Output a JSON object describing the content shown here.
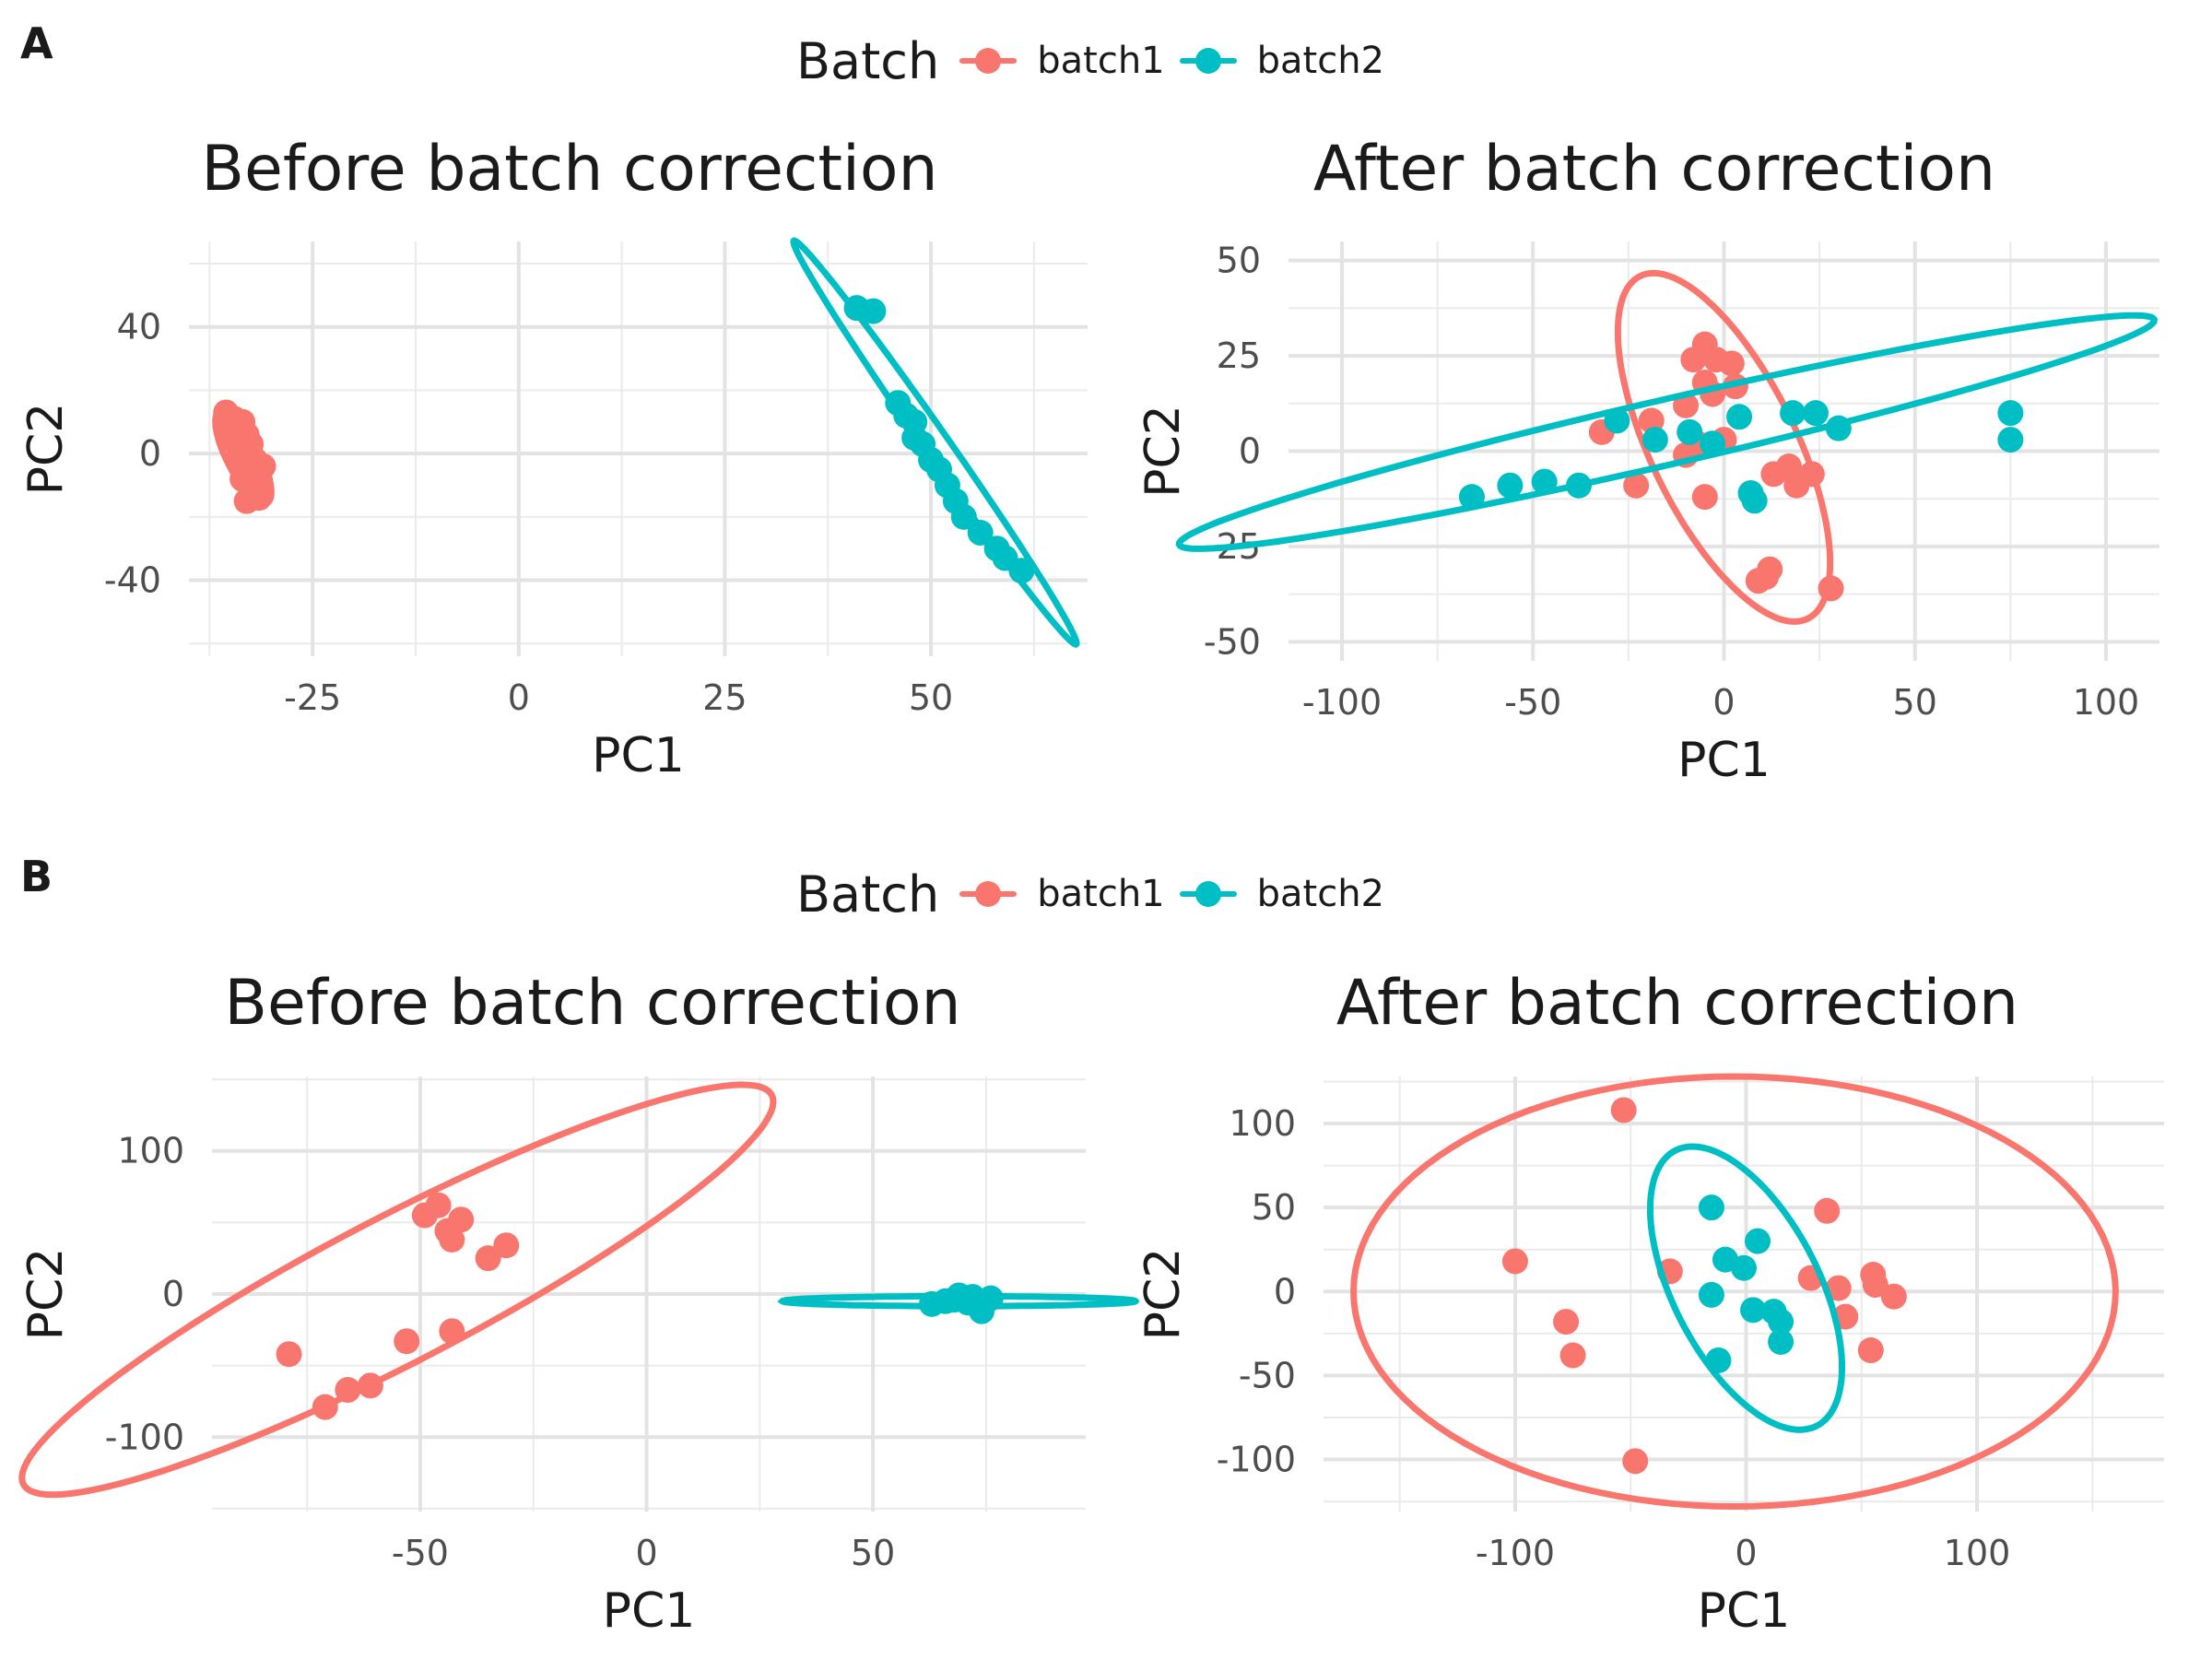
{
  "figure": {
    "panel_a_label": "A",
    "panel_b_label": "B",
    "legend_a": {
      "title": "Batch",
      "items": [
        {
          "label": "batch1",
          "color": "#F8766D"
        },
        {
          "label": "batch2",
          "color": "#00BFC4"
        }
      ]
    },
    "legend_b": {
      "title": "Batch",
      "items": [
        {
          "label": "batch1",
          "color": "#F8766D"
        },
        {
          "label": "batch2",
          "color": "#00BFC4"
        }
      ]
    }
  },
  "chart_data": [
    {
      "type": "scatter",
      "panel": "A",
      "title": "Before batch correction",
      "xlabel": "PC1",
      "ylabel": "PC2",
      "xlim": [
        -40,
        69
      ],
      "ylim": [
        -64,
        67
      ],
      "xticks": [
        -25,
        0,
        25,
        50
      ],
      "yticks": [
        -40,
        0,
        40
      ],
      "grid": true,
      "series": [
        {
          "name": "batch1",
          "color": "#F8766D",
          "points": [
            [
              -35.5,
              8
            ],
            [
              -35.5,
              13
            ],
            [
              -34.5,
              11
            ],
            [
              -33.5,
              10
            ],
            [
              -33,
              6
            ],
            [
              -34,
              3
            ],
            [
              -33,
              0
            ],
            [
              -32,
              -2
            ],
            [
              -31,
              -4
            ],
            [
              -33.5,
              -8
            ],
            [
              -32,
              -10
            ],
            [
              -31.5,
              -14
            ],
            [
              -33,
              -15
            ],
            [
              -31.5,
              -11
            ],
            [
              -34.5,
              4
            ],
            [
              -34,
              -1
            ],
            [
              -32.5,
              3
            ],
            [
              -35,
              6
            ],
            [
              -33,
              -3
            ]
          ],
          "ellipse": {
            "center": [
              -33.4,
              -1
            ],
            "semi_major": 15,
            "semi_minor": 2.2,
            "angle_deg": -80
          }
        },
        {
          "name": "batch2",
          "color": "#00BFC4",
          "points": [
            [
              41,
              46
            ],
            [
              43,
              45
            ],
            [
              46,
              16
            ],
            [
              47,
              12
            ],
            [
              48,
              10
            ],
            [
              48,
              5
            ],
            [
              49,
              3
            ],
            [
              50,
              -2
            ],
            [
              51,
              -5
            ],
            [
              52,
              -10
            ],
            [
              53,
              -15
            ],
            [
              54,
              -20
            ],
            [
              56,
              -25
            ],
            [
              58,
              -30
            ],
            [
              59,
              -33
            ],
            [
              61,
              -37
            ]
          ],
          "ellipse": {
            "center": [
              50.5,
              3.5
            ],
            "semi_major": 66,
            "semi_minor": 1.8,
            "angle_deg": -75
          }
        }
      ]
    },
    {
      "type": "scatter",
      "panel": "A",
      "title": "After batch correction",
      "xlabel": "PC1",
      "ylabel": "PC2",
      "xlim": [
        -114,
        114
      ],
      "ylim": [
        -55,
        55
      ],
      "xticks": [
        -100,
        -50,
        0,
        50,
        100
      ],
      "yticks": [
        -50,
        -25,
        0,
        25,
        50
      ],
      "grid": true,
      "series": [
        {
          "name": "batch1",
          "color": "#F8766D",
          "points": [
            [
              -32,
              5
            ],
            [
              -19,
              8
            ],
            [
              -23,
              -9
            ],
            [
              -10,
              12
            ],
            [
              -10,
              -1
            ],
            [
              -8,
              24
            ],
            [
              -5,
              28
            ],
            [
              -5,
              18
            ],
            [
              -2,
              24
            ],
            [
              2,
              23
            ],
            [
              3,
              17
            ],
            [
              -3,
              15
            ],
            [
              -7,
              2
            ],
            [
              -5,
              -12
            ],
            [
              0,
              3
            ],
            [
              13,
              -6
            ],
            [
              17,
              -4
            ],
            [
              19,
              -9
            ],
            [
              23,
              -6
            ],
            [
              9,
              -34
            ],
            [
              11,
              -33
            ],
            [
              12,
              -31
            ],
            [
              28,
              -36
            ]
          ],
          "ellipse": {
            "center": [
              0,
              1
            ],
            "semi_major": 50,
            "semi_minor": 19,
            "angle_deg": -64
          }
        },
        {
          "name": "batch2",
          "color": "#00BFC4",
          "points": [
            [
              -66,
              -12
            ],
            [
              -56,
              -9
            ],
            [
              -47,
              -8
            ],
            [
              -38,
              -9
            ],
            [
              -28,
              8
            ],
            [
              -18,
              3
            ],
            [
              -9,
              5
            ],
            [
              -3,
              2
            ],
            [
              4,
              9
            ],
            [
              7,
              -11
            ],
            [
              8,
              -13
            ],
            [
              18,
              10
            ],
            [
              24,
              10
            ],
            [
              30,
              6
            ],
            [
              75,
              10
            ],
            [
              75,
              3
            ]
          ],
          "ellipse": {
            "center": [
              -15,
              5
            ],
            "semi_major": 131,
            "semi_minor": 8.5,
            "angle_deg": 13
          }
        }
      ]
    },
    {
      "type": "scatter",
      "panel": "B",
      "title": "Before batch correction",
      "xlabel": "PC1",
      "ylabel": "PC2",
      "xlim": [
        -96,
        97
      ],
      "ylim": [
        -152,
        152
      ],
      "xticks": [
        -50,
        0,
        50
      ],
      "yticks": [
        -100,
        0,
        100
      ],
      "grid": true,
      "series": [
        {
          "name": "batch1",
          "color": "#F8766D",
          "points": [
            [
              -79,
              -42
            ],
            [
              -71,
              -79
            ],
            [
              -66,
              -67
            ],
            [
              -61,
              -64
            ],
            [
              -53,
              -33
            ],
            [
              -49,
              55
            ],
            [
              -46,
              62
            ],
            [
              -44,
              44
            ],
            [
              -43,
              38
            ],
            [
              -41,
              52
            ],
            [
              -43,
              -26
            ],
            [
              -35,
              25
            ],
            [
              -31,
              34
            ]
          ],
          "ellipse": {
            "center": [
              -55,
              3
            ],
            "semi_major": 163,
            "semi_minor": 29,
            "angle_deg": 61
          }
        },
        {
          "name": "batch2",
          "color": "#00BFC4",
          "points": [
            [
              63,
              -7
            ],
            [
              66,
              -5
            ],
            [
              68,
              -4
            ],
            [
              69,
              -1
            ],
            [
              71,
              -6
            ],
            [
              72,
              -2
            ],
            [
              74,
              -12
            ],
            [
              76,
              -3
            ]
          ],
          "ellipse": {
            "center": [
              69,
              -5
            ],
            "semi_major": 39,
            "semi_minor": 3.5,
            "angle_deg": 0
          }
        }
      ]
    },
    {
      "type": "scatter",
      "panel": "B",
      "title": "After batch correction",
      "xlabel": "PC1",
      "ylabel": "PC2",
      "xlim": [
        -183,
        181
      ],
      "ylim": [
        -131,
        128
      ],
      "xticks": [
        -100,
        0,
        100
      ],
      "yticks": [
        -100,
        -50,
        0,
        50,
        100
      ],
      "grid": true,
      "series": [
        {
          "name": "batch1",
          "color": "#F8766D",
          "points": [
            [
              -53,
              108
            ],
            [
              -100,
              18
            ],
            [
              -78,
              -18
            ],
            [
              -75,
              -38
            ],
            [
              -48,
              -101
            ],
            [
              -33,
              12
            ],
            [
              28,
              8
            ],
            [
              35,
              48
            ],
            [
              40,
              2
            ],
            [
              43,
              -15
            ],
            [
              54,
              -35
            ],
            [
              55,
              10
            ],
            [
              56,
              4
            ],
            [
              64,
              -3
            ]
          ],
          "ellipse": {
            "center": [
              -5,
              0
            ],
            "semi_major": 165,
            "semi_minor": 128,
            "angle_deg": 0
          }
        },
        {
          "name": "batch2",
          "color": "#00BFC4",
          "points": [
            [
              -15,
              50
            ],
            [
              -9,
              19
            ],
            [
              -1,
              14
            ],
            [
              5,
              30
            ],
            [
              -15,
              -2
            ],
            [
              3,
              -11
            ],
            [
              12,
              -12
            ],
            [
              15,
              -18
            ],
            [
              15,
              -30
            ],
            [
              -12,
              -41
            ]
          ],
          "ellipse": {
            "center": [
              0,
              2
            ],
            "semi_major": 88,
            "semi_minor": 33,
            "angle_deg": -72
          }
        }
      ]
    }
  ]
}
